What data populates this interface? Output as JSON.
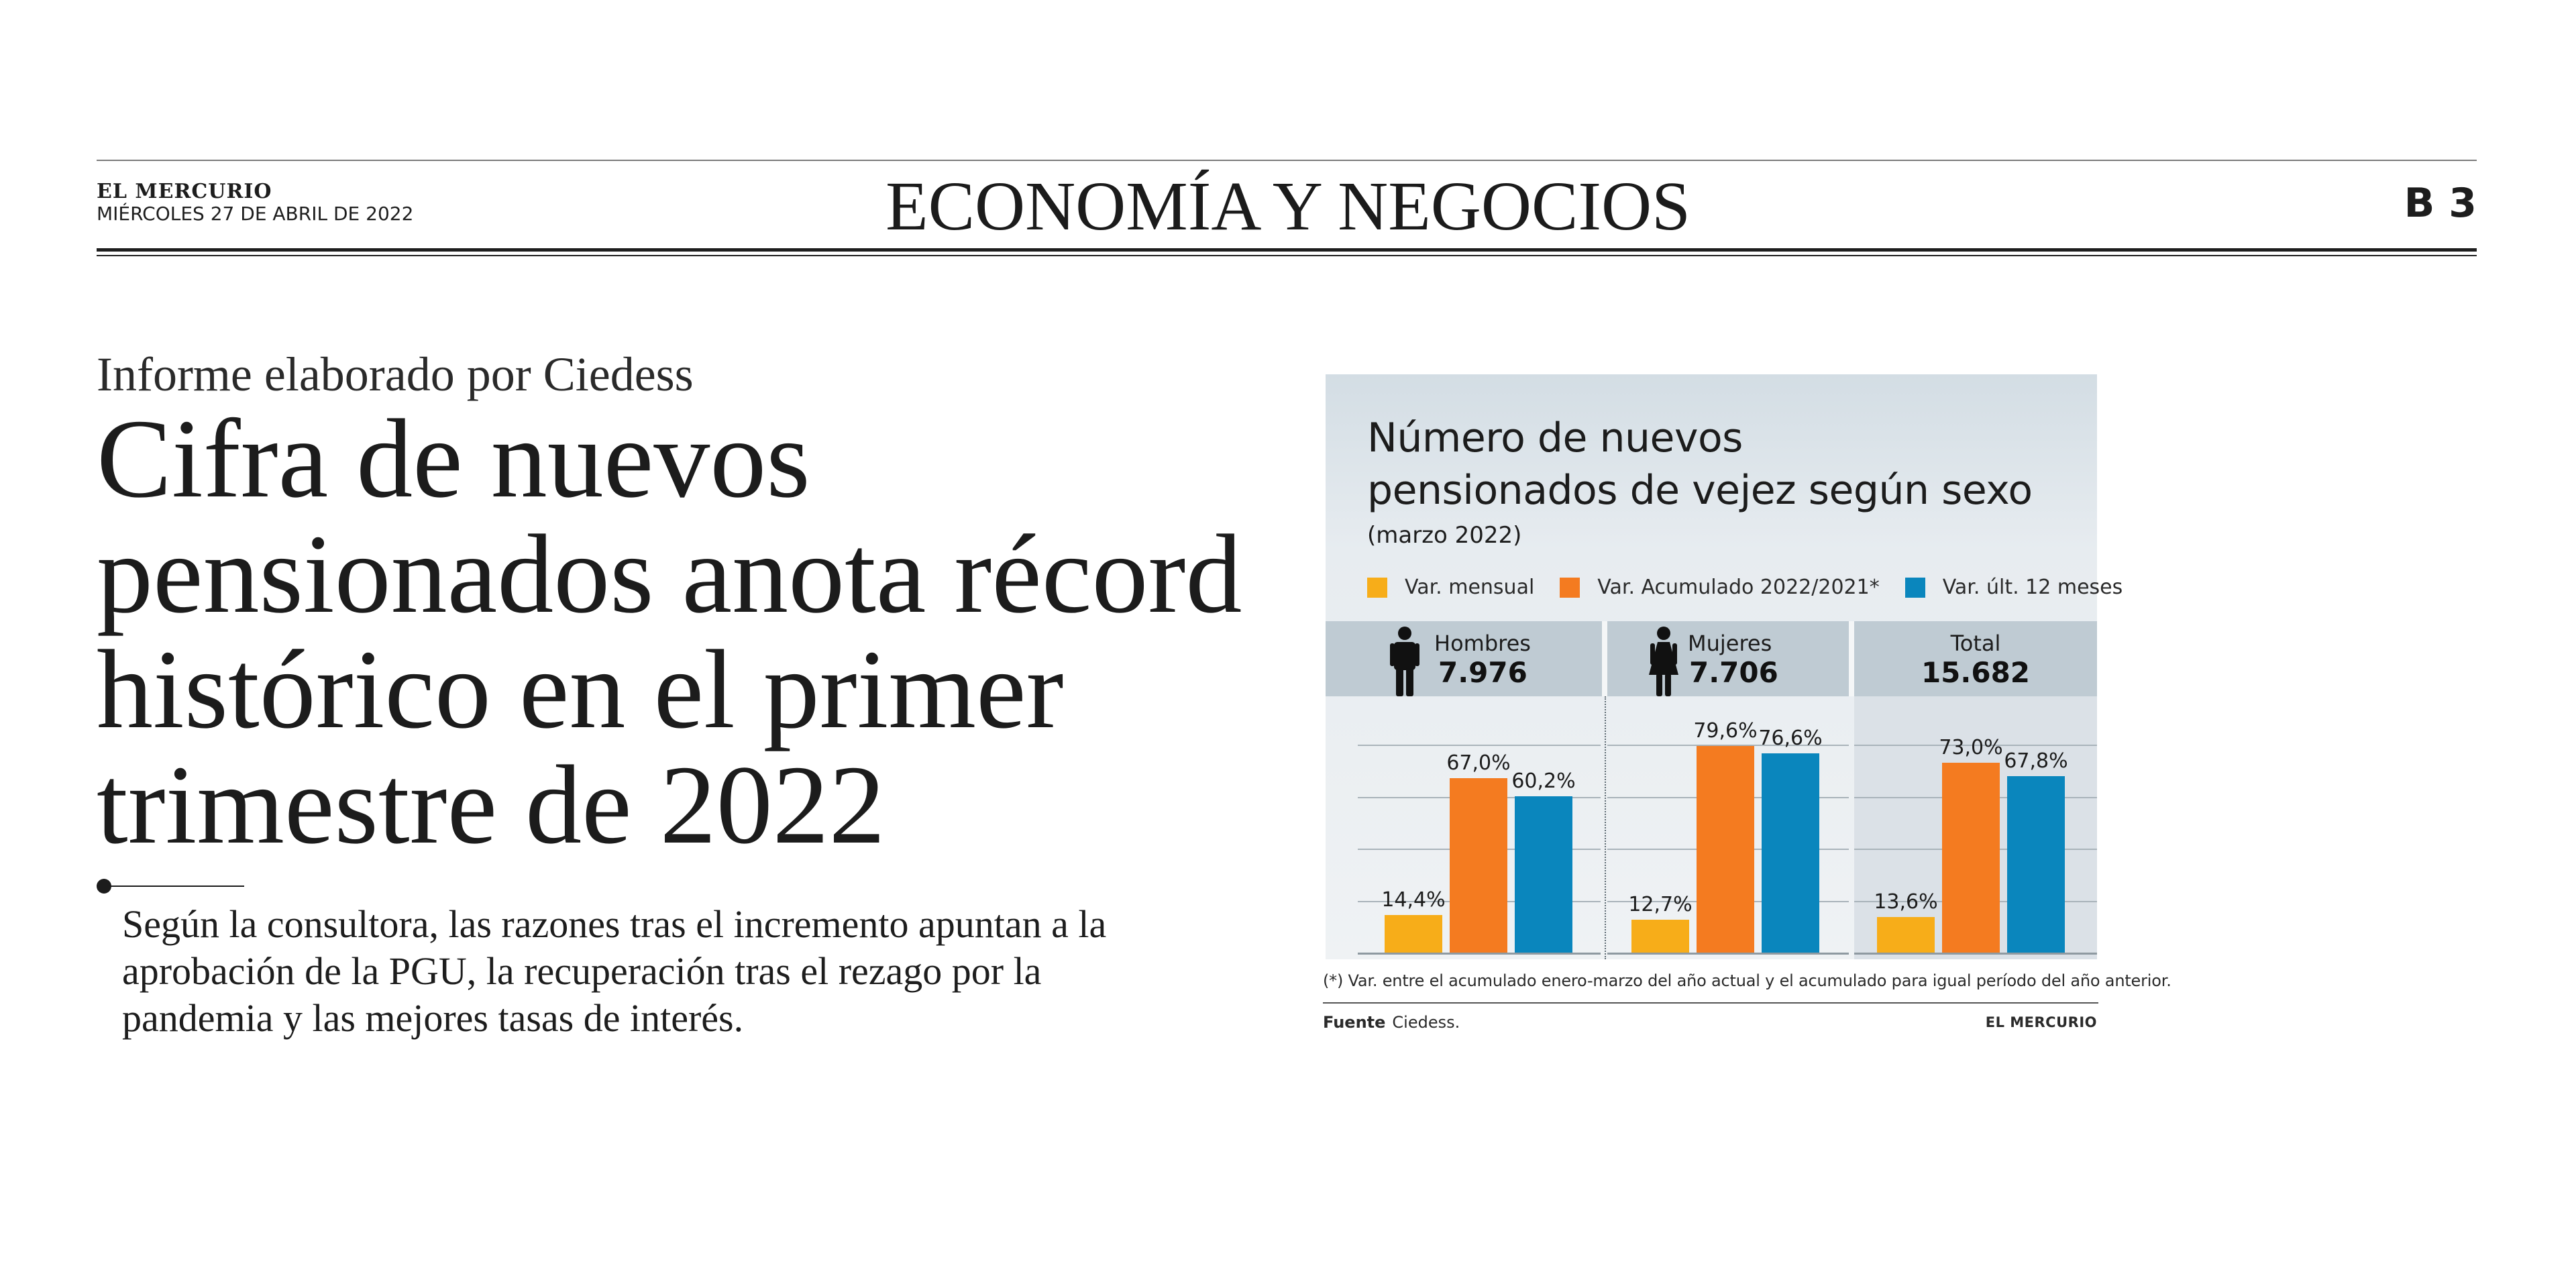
{
  "masthead": {
    "paper_name": "EL MERCURIO",
    "date": "MIÉRCOLES 27 DE ABRIL DE 2022",
    "section": "ECONOMÍA Y NEGOCIOS",
    "page": "B 3"
  },
  "article": {
    "kicker": "Informe elaborado por Ciedess",
    "headline_lines": [
      "Cifra de nuevos",
      "pensionados anota récord",
      "histórico en el primer",
      "trimestre de 2022"
    ],
    "deck_lines": [
      "Según la consultora, las razones tras el incremento apuntan a la",
      "aprobación de la PGU, la recuperación tras el rezago por la",
      "pandemia y las mejores tasas de interés."
    ]
  },
  "infographic": {
    "title_lines": [
      "Número de nuevos",
      "pensionados de vejez según sexo"
    ],
    "subtitle": "(marzo 2022)",
    "footnote": "(*) Var. entre el acumulado enero-marzo del año actual y el acumulado para igual período del año anterior.",
    "source_label": "Fuente",
    "source": "Ciedess.",
    "credit": "EL MERCURIO",
    "colors": {
      "mensual": "#f7ad19",
      "acumulado": "#f47b20",
      "ult12": "#0a86bd"
    }
  },
  "chart_data": {
    "type": "bar",
    "title": "Número de nuevos pensionados de vejez según sexo",
    "subtitle": "(marzo 2022)",
    "categories": [
      "Hombres",
      "Mujeres",
      "Total"
    ],
    "category_totals": [
      "7.976",
      "7.706",
      "15.682"
    ],
    "category_icons": [
      "man-icon",
      "woman-icon",
      ""
    ],
    "series": [
      {
        "name": "Var. mensual",
        "values": [
          14.4,
          12.7,
          13.6
        ],
        "labels": [
          "14,4%",
          "12,7%",
          "13,6%"
        ],
        "color": "#f7ad19"
      },
      {
        "name": "Var. Acumulado 2022/2021*",
        "values": [
          67.0,
          79.6,
          73.0
        ],
        "labels": [
          "67,0%",
          "79,6%",
          "73,0%"
        ],
        "color": "#f47b20"
      },
      {
        "name": "Var. últ. 12 meses",
        "values": [
          60.2,
          76.6,
          67.8
        ],
        "labels": [
          "60,2%",
          "76,6%",
          "67,8%"
        ],
        "color": "#0a86bd"
      }
    ],
    "unit": "%",
    "ylim": [
      0,
      80
    ],
    "grid": true,
    "legend": "top",
    "xlabel": "",
    "ylabel": ""
  }
}
